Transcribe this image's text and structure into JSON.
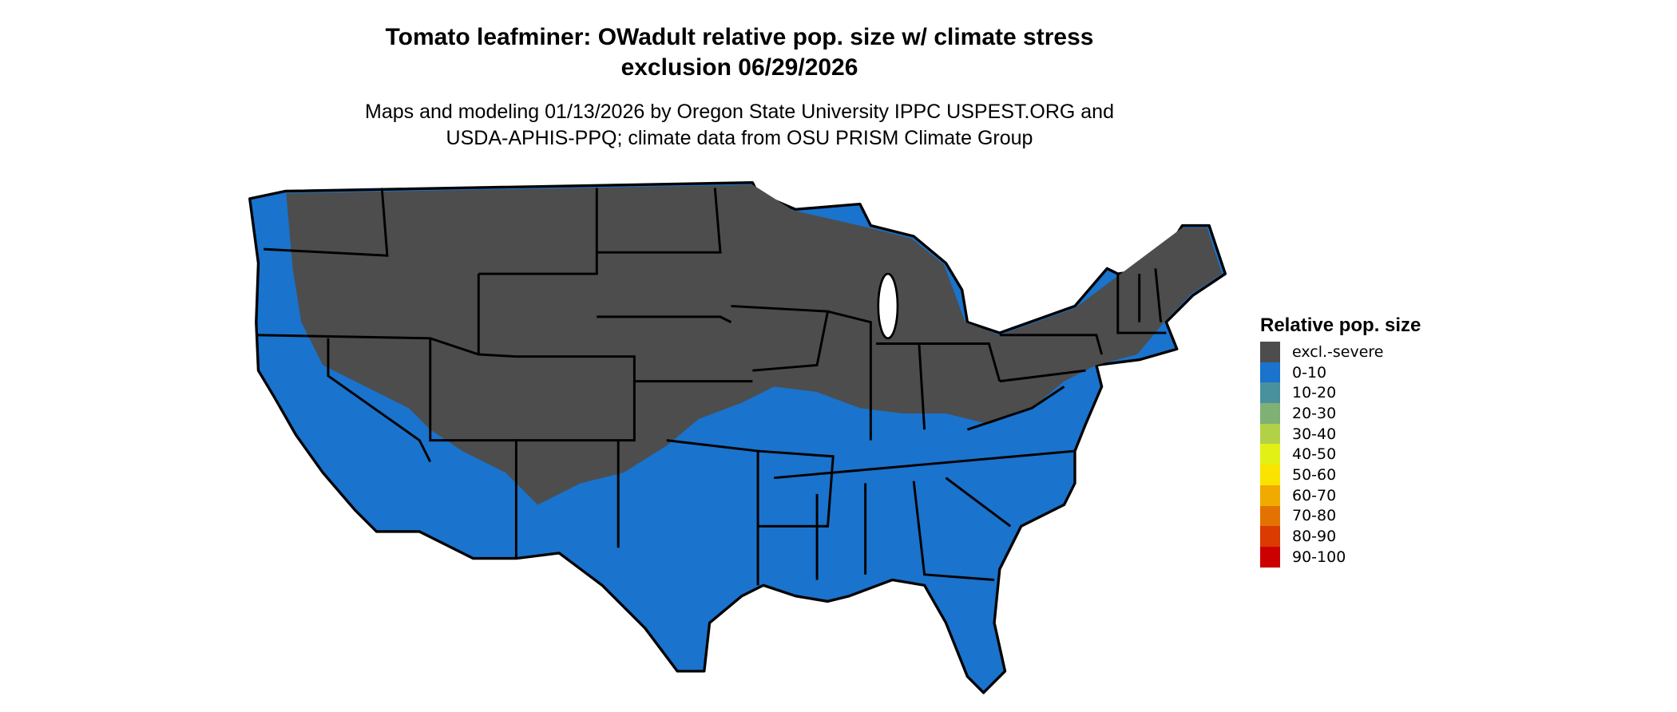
{
  "title_line1": "Tomato leafminer: OWadult relative pop. size w/ climate stress",
  "title_line2": "exclusion 06/29/2026",
  "subtitle_line1": "Maps and modeling 01/13/2026 by Oregon State University IPPC USPEST.ORG and",
  "subtitle_line2": "USDA-APHIS-PPQ; climate data from OSU PRISM Climate Group",
  "map": {
    "region": "Contiguous United States",
    "predominant_classes": [
      "excl.-severe",
      "0-10"
    ]
  },
  "legend": {
    "title": "Relative pop. size",
    "items": [
      {
        "label": "excl.-severe",
        "color": "#4d4d4d"
      },
      {
        "label": "0-10",
        "color": "#1a73cc"
      },
      {
        "label": "10-20",
        "color": "#4a919e"
      },
      {
        "label": "20-30",
        "color": "#7fb074"
      },
      {
        "label": "30-40",
        "color": "#b3d147"
      },
      {
        "label": "40-50",
        "color": "#e3f016"
      },
      {
        "label": "50-60",
        "color": "#fae300"
      },
      {
        "label": "60-70",
        "color": "#f0aa00"
      },
      {
        "label": "70-80",
        "color": "#e37200"
      },
      {
        "label": "80-90",
        "color": "#db3a00"
      },
      {
        "label": "90-100",
        "color": "#cc0000"
      }
    ]
  }
}
